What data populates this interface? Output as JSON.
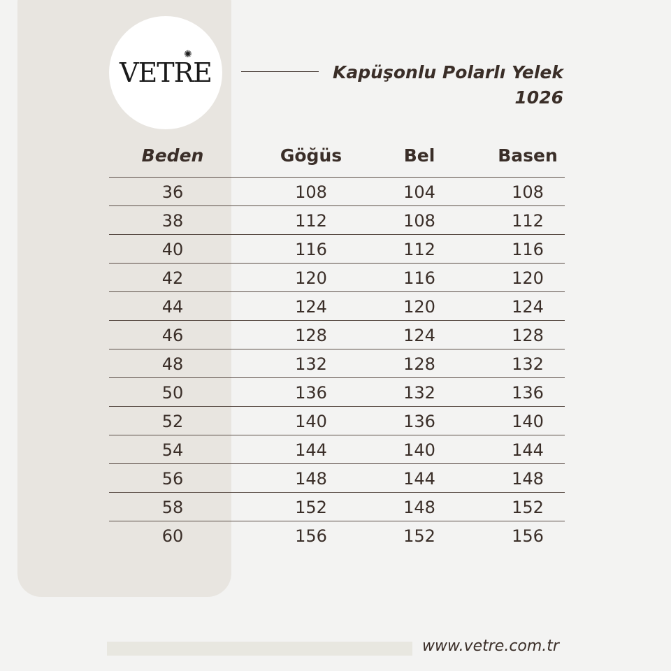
{
  "brand": {
    "logo_text": "VETRE"
  },
  "title": {
    "product": "Kapüşonlu Polarlı Yelek",
    "code": "1026"
  },
  "table": {
    "headers": [
      "Beden",
      "Göğüs",
      "Bel",
      "Basen"
    ],
    "rows": [
      [
        "36",
        "108",
        "104",
        "108"
      ],
      [
        "38",
        "112",
        "108",
        "112"
      ],
      [
        "40",
        "116",
        "112",
        "116"
      ],
      [
        "42",
        "120",
        "116",
        "120"
      ],
      [
        "44",
        "124",
        "120",
        "124"
      ],
      [
        "46",
        "128",
        "124",
        "128"
      ],
      [
        "48",
        "132",
        "128",
        "132"
      ],
      [
        "50",
        "136",
        "132",
        "136"
      ],
      [
        "52",
        "140",
        "136",
        "140"
      ],
      [
        "54",
        "144",
        "140",
        "144"
      ],
      [
        "56",
        "148",
        "144",
        "148"
      ],
      [
        "58",
        "152",
        "148",
        "152"
      ],
      [
        "60",
        "156",
        "152",
        "156"
      ]
    ]
  },
  "footer": {
    "url": "www.vetre.com.tr"
  },
  "colors": {
    "text": "#3a2e28",
    "panel": "#e8e5e0",
    "background": "#f3f3f2"
  }
}
